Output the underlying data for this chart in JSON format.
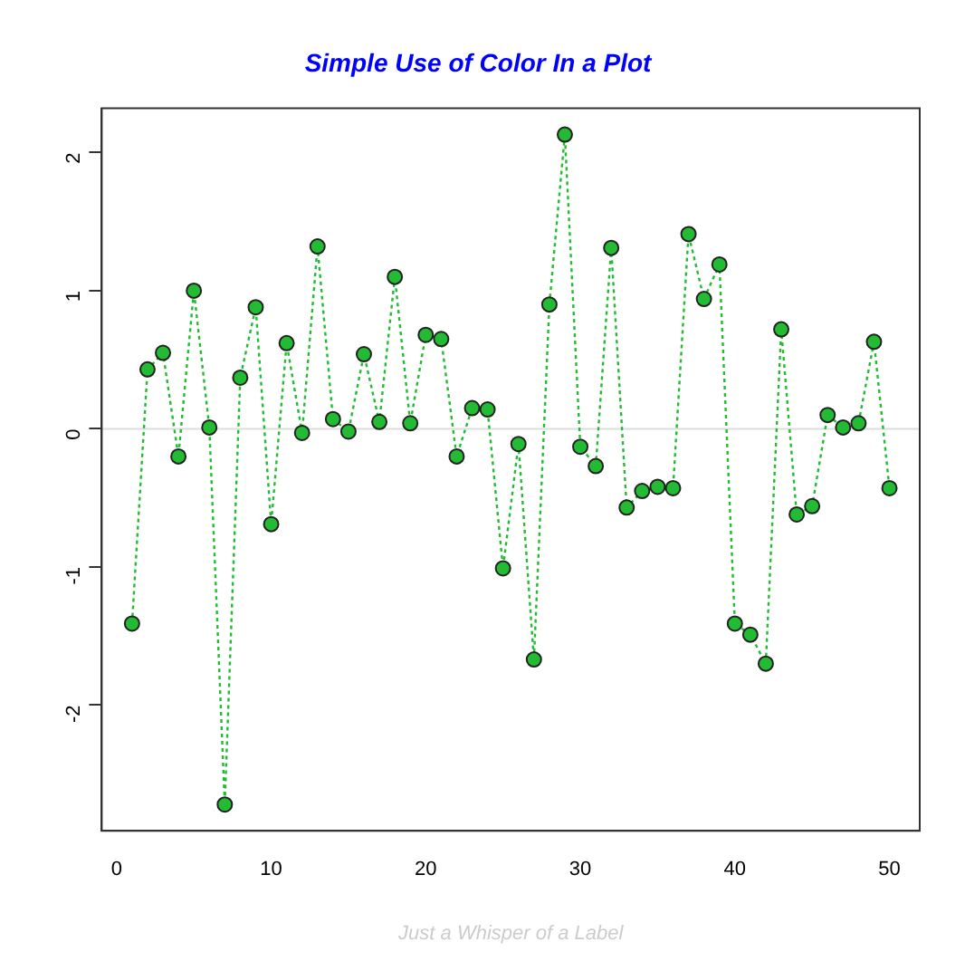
{
  "chart_data": {
    "type": "line",
    "title": "Simple Use of Color In a Plot",
    "xlabel": "Just a Whisper of a Label",
    "x": [
      1,
      2,
      3,
      4,
      5,
      6,
      7,
      8,
      9,
      10,
      11,
      12,
      13,
      14,
      15,
      16,
      17,
      18,
      19,
      20,
      21,
      22,
      23,
      24,
      25,
      26,
      27,
      28,
      29,
      30,
      31,
      32,
      33,
      34,
      35,
      36,
      37,
      38,
      39,
      40,
      41,
      42,
      43,
      44,
      45,
      46,
      47,
      48,
      49,
      50
    ],
    "series": [
      {
        "color": "#22bb33",
        "values": [
          -1.41,
          0.43,
          0.55,
          -0.2,
          1.0,
          0.01,
          -2.72,
          0.37,
          0.88,
          -0.69,
          0.62,
          -0.03,
          1.32,
          0.07,
          -0.02,
          0.54,
          0.05,
          1.1,
          0.04,
          0.68,
          0.65,
          -0.2,
          0.15,
          0.14,
          -1.01,
          -0.11,
          -1.67,
          0.9,
          2.13,
          -0.13,
          -0.27,
          1.31,
          -0.57,
          -0.45,
          -0.42,
          -0.43,
          1.41,
          0.94,
          1.19,
          -1.41,
          -1.49,
          -1.7,
          0.72,
          -0.62,
          -0.56,
          0.1,
          0.01,
          0.04,
          0.63,
          -0.43
        ]
      }
    ],
    "xlim": [
      -0.96,
      51.96
    ],
    "ylim": [
      -2.91,
      2.32
    ],
    "xticks": [
      0,
      10,
      20,
      30,
      40,
      50
    ],
    "yticks": [
      -2,
      -1,
      0,
      1,
      2
    ],
    "ref_lines": [
      {
        "axis": "y",
        "value": 0,
        "color": "#dddddd"
      }
    ],
    "marker": "circle",
    "line_style": "dotted",
    "grid": false,
    "legend": false
  }
}
